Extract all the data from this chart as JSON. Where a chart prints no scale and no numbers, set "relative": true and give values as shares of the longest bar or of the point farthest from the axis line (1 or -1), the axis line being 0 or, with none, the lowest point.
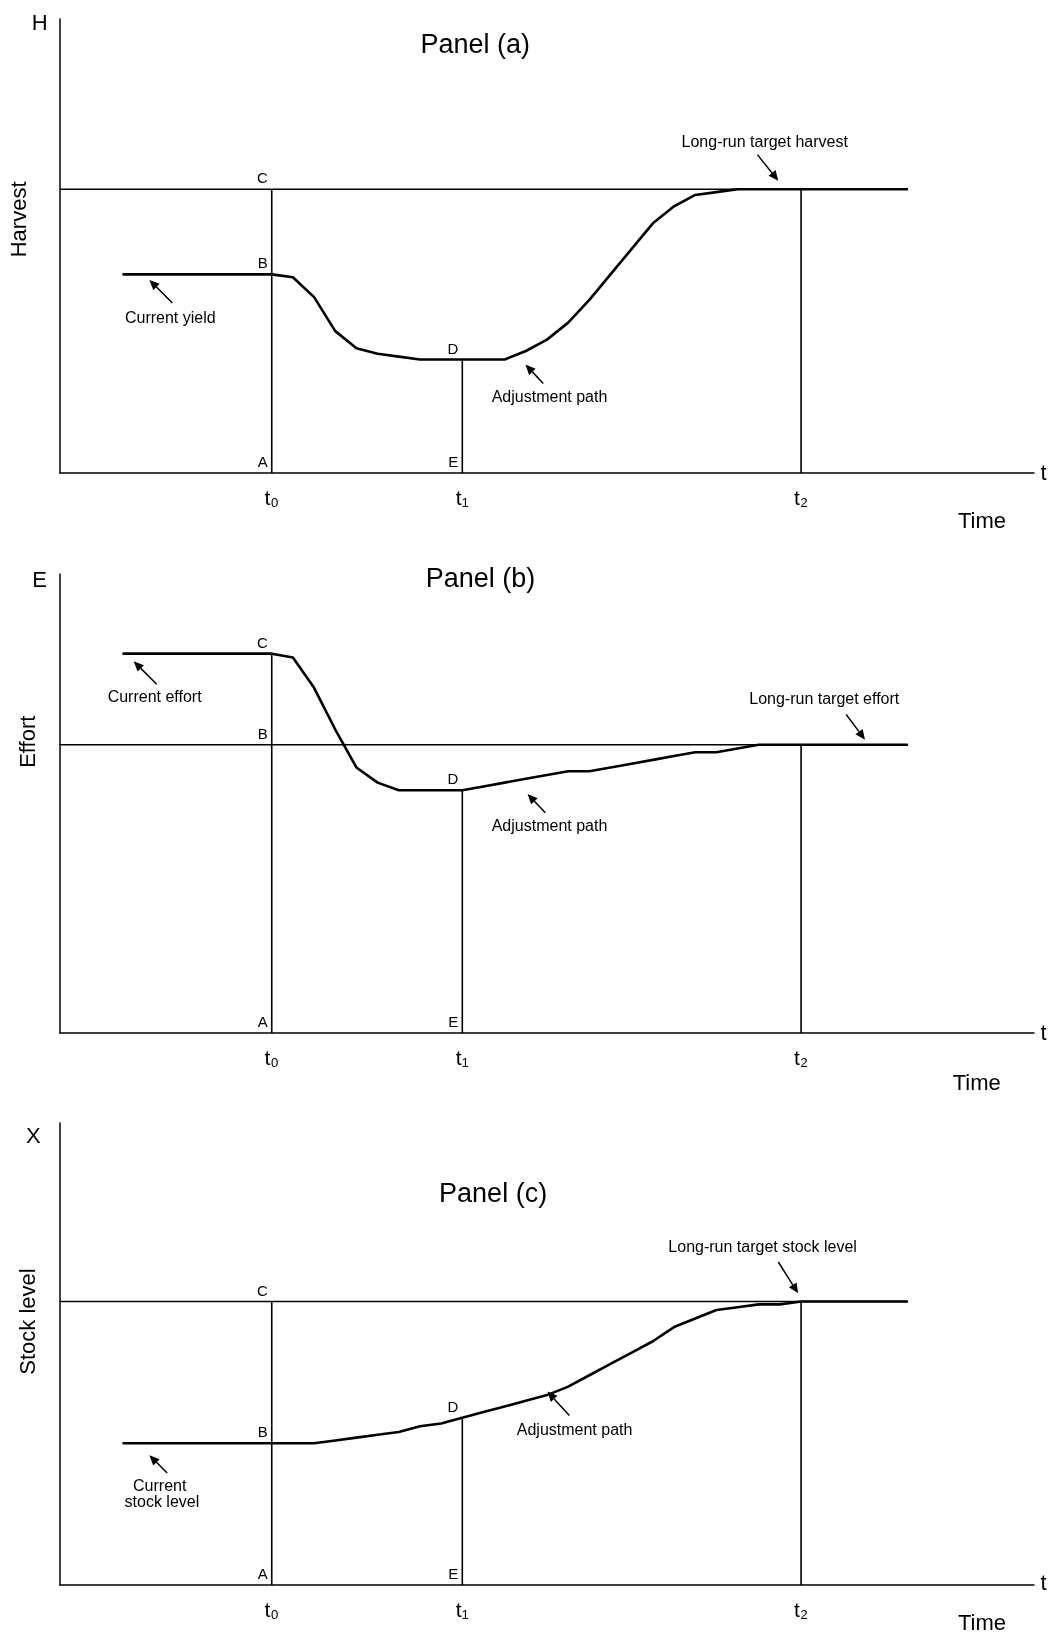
{
  "chart_data": [
    {
      "type": "line",
      "title": "Panel (a)",
      "xlabel": "Time",
      "ylabel": "Harvest",
      "relative": true,
      "marker": "none",
      "line_style": "solid",
      "categories": [
        null,
        null,
        null,
        null,
        null,
        null,
        null,
        null,
        null,
        null,
        "t₀",
        null,
        null,
        null,
        null,
        null,
        null,
        null,
        null,
        "t₁",
        null,
        null,
        null,
        null,
        null,
        null,
        null,
        null,
        null,
        null,
        null,
        null,
        null,
        null,
        null,
        "t₂",
        null,
        null,
        null,
        null,
        null,
        null,
        null,
        null,
        null,
        null,
        null
      ],
      "series": [
        {
          "color": "#000000",
          "values": [
            null,
            null,
            null,
            0.7,
            0.7,
            0.7,
            0.7,
            0.7,
            0.7,
            0.7,
            0.7,
            0.69,
            0.62,
            0.5,
            0.44,
            0.42,
            0.41,
            0.4,
            0.4,
            0.4,
            0.4,
            0.4,
            0.43,
            0.47,
            0.53,
            0.61,
            0.7,
            0.79,
            0.88,
            0.94,
            0.98,
            0.99,
            1,
            1,
            1,
            1,
            1,
            1,
            1,
            1,
            1,
            null,
            null,
            null,
            null,
            null,
            null
          ]
        },
        {
          "color": "#000000",
          "values": [
            1,
            1,
            1,
            1,
            1,
            1,
            1,
            1,
            1,
            1,
            1,
            1,
            1,
            1,
            1,
            1,
            1,
            1,
            1,
            1,
            1,
            1,
            1,
            1,
            1,
            1,
            1,
            1,
            1,
            1,
            1,
            1,
            1,
            1,
            1,
            1,
            1,
            1,
            1,
            1,
            1,
            null,
            null,
            null,
            null,
            null,
            null
          ]
        },
        {
          "type": "bar",
          "color": "#000000",
          "x": [
            "t₀",
            "t₁",
            "t₂"
          ],
          "values": [
            1,
            0.4,
            1
          ]
        }
      ],
      "annotations": [
        {
          "text": "A",
          "x": "t₀",
          "y": 0
        },
        {
          "text": "B",
          "x": "t₀",
          "y": 0.7
        },
        {
          "text": "C",
          "x": "t₀",
          "y": 1
        },
        {
          "text": "D",
          "x": "t₁",
          "y": 0.4
        },
        {
          "text": "E",
          "x": "t₁",
          "y": 0
        },
        "H",
        "t",
        "Current yield",
        "Long-run target harvest",
        "Adjustment path"
      ]
    },
    {
      "type": "line",
      "title": "Panel (b)",
      "xlabel": "Time",
      "ylabel": "Effort",
      "relative": true,
      "marker": "none",
      "line_style": "solid",
      "categories": [
        null,
        null,
        null,
        null,
        null,
        null,
        null,
        null,
        null,
        null,
        "t₀",
        null,
        null,
        null,
        null,
        null,
        null,
        null,
        null,
        "t₁",
        null,
        null,
        null,
        null,
        null,
        null,
        null,
        null,
        null,
        null,
        null,
        null,
        null,
        null,
        null,
        "t₂",
        null,
        null,
        null,
        null,
        null,
        null,
        null,
        null,
        null,
        null,
        null
      ],
      "series": [
        {
          "color": "#000000",
          "values": [
            null,
            null,
            null,
            1,
            1,
            1,
            1,
            1,
            1,
            1,
            1,
            0.99,
            0.91,
            0.8,
            0.7,
            0.66,
            0.64,
            0.64,
            0.64,
            0.64,
            0.65,
            0.66,
            0.67,
            0.68,
            0.69,
            0.69,
            0.7,
            0.71,
            0.72,
            0.73,
            0.74,
            0.74,
            0.75,
            0.76,
            0.76,
            0.76,
            0.76,
            0.76,
            0.76,
            0.76,
            0.76,
            null,
            null,
            null,
            null,
            null,
            null
          ]
        },
        {
          "color": "#000000",
          "values": [
            0.76,
            0.76,
            0.76,
            0.76,
            0.76,
            0.76,
            0.76,
            0.76,
            0.76,
            0.76,
            0.76,
            0.76,
            0.76,
            0.76,
            0.76,
            0.76,
            0.76,
            0.76,
            0.76,
            0.76,
            0.76,
            0.76,
            0.76,
            0.76,
            0.76,
            0.76,
            0.76,
            0.76,
            0.76,
            0.76,
            0.76,
            0.76,
            0.76,
            0.76,
            0.76,
            0.76,
            0.76,
            0.76,
            0.76,
            0.76,
            0.76,
            null,
            null,
            null,
            null,
            null,
            null
          ]
        },
        {
          "type": "bar",
          "color": "#000000",
          "x": [
            "t₀",
            "t₁",
            "t₂"
          ],
          "values": [
            1,
            0.64,
            0.76
          ]
        }
      ],
      "annotations": [
        {
          "text": "A",
          "x": "t₀",
          "y": 0
        },
        {
          "text": "B",
          "x": "t₀",
          "y": 0.76
        },
        {
          "text": "C",
          "x": "t₀",
          "y": 1
        },
        {
          "text": "D",
          "x": "t₁",
          "y": 0.64
        },
        {
          "text": "E",
          "x": "t₁",
          "y": 0
        },
        "E",
        "t",
        "Current effort",
        "Long-run target effort",
        "Adjustment path"
      ]
    },
    {
      "type": "line",
      "title": "Panel (c)",
      "xlabel": "Time",
      "ylabel": "Stock level",
      "relative": true,
      "marker": "none",
      "line_style": "solid",
      "categories": [
        null,
        null,
        null,
        null,
        null,
        null,
        null,
        null,
        null,
        null,
        "t₀",
        null,
        null,
        null,
        null,
        null,
        null,
        null,
        null,
        "t₁",
        null,
        null,
        null,
        null,
        null,
        null,
        null,
        null,
        null,
        null,
        null,
        null,
        null,
        null,
        null,
        "t₂",
        null,
        null,
        null,
        null,
        null,
        null,
        null,
        null,
        null,
        null,
        null
      ],
      "series": [
        {
          "color": "#000000",
          "values": [
            null,
            null,
            null,
            0.5,
            0.5,
            0.5,
            0.5,
            0.5,
            0.5,
            0.5,
            0.5,
            0.5,
            0.5,
            0.51,
            0.52,
            0.53,
            0.54,
            0.56,
            0.57,
            0.59,
            0.61,
            0.63,
            0.65,
            0.67,
            0.7,
            0.74,
            0.78,
            0.82,
            0.86,
            0.91,
            0.94,
            0.97,
            0.98,
            0.99,
            0.99,
            1,
            1,
            1,
            1,
            1,
            1,
            null,
            null,
            null,
            null,
            null,
            null
          ]
        },
        {
          "color": "#000000",
          "values": [
            1,
            1,
            1,
            1,
            1,
            1,
            1,
            1,
            1,
            1,
            1,
            1,
            1,
            1,
            1,
            1,
            1,
            1,
            1,
            1,
            1,
            1,
            1,
            1,
            1,
            1,
            1,
            1,
            1,
            1,
            1,
            1,
            1,
            1,
            1,
            1,
            1,
            1,
            1,
            1,
            1,
            null,
            null,
            null,
            null,
            null,
            null
          ]
        },
        {
          "type": "bar",
          "color": "#000000",
          "x": [
            "t₀",
            "t₁",
            "t₂"
          ],
          "values": [
            1,
            0.59,
            1
          ]
        }
      ],
      "annotations": [
        {
          "text": "A",
          "x": "t₀",
          "y": 0
        },
        {
          "text": "B",
          "x": "t₀",
          "y": 0.5
        },
        {
          "text": "C",
          "x": "t₀",
          "y": 1
        },
        {
          "text": "D",
          "x": "t₁",
          "y": 0.59
        },
        {
          "text": "E",
          "x": "t₁",
          "y": 0
        },
        "X",
        "t",
        "Current stock level",
        "Long-run target stock level",
        "Adjustment path"
      ]
    }
  ]
}
